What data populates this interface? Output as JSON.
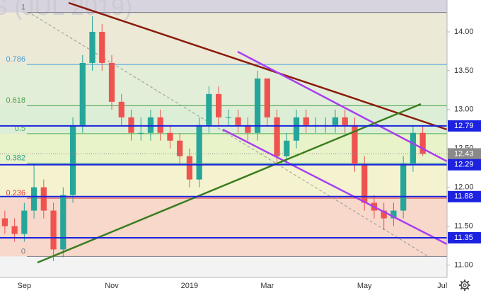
{
  "chart_data": {
    "type": "candlestick",
    "watermark": "S (JUL 2019)",
    "categories": [
      null,
      null,
      "Sep",
      null,
      null,
      null,
      null,
      null,
      null,
      null,
      null,
      "Nov",
      null,
      null,
      null,
      null,
      null,
      null,
      null,
      "2019",
      null,
      null,
      null,
      null,
      null,
      null,
      null,
      "Mar",
      null,
      null,
      null,
      null,
      null,
      null,
      null,
      null,
      null,
      "May",
      null,
      null,
      null,
      null,
      null,
      null,
      null,
      "Jul"
    ],
    "open": [
      11.6,
      11.5,
      11.4,
      11.7,
      12.0,
      11.7,
      11.2,
      11.9,
      12.8,
      13.6,
      14.0,
      13.6,
      13.1,
      12.9,
      12.7,
      12.7,
      12.9,
      12.7,
      12.6,
      12.4,
      12.1,
      12.8,
      13.2,
      12.9,
      12.9,
      12.8,
      12.7,
      13.4,
      12.9,
      12.4,
      12.6,
      12.9,
      12.8,
      12.8,
      12.8,
      12.9,
      12.8,
      12.3,
      11.8,
      11.7,
      11.6,
      11.7,
      12.3,
      12.7,
      null,
      null
    ],
    "high": [
      11.7,
      11.6,
      11.8,
      12.3,
      12.1,
      11.8,
      12.0,
      12.9,
      13.7,
      14.2,
      14.1,
      13.7,
      13.2,
      13.0,
      12.9,
      13.0,
      13.0,
      12.8,
      12.7,
      12.5,
      12.9,
      13.3,
      13.3,
      13.0,
      13.0,
      12.9,
      13.5,
      13.4,
      13.0,
      12.7,
      13.0,
      13.0,
      12.9,
      12.9,
      13.0,
      13.0,
      12.9,
      12.4,
      11.9,
      11.8,
      11.8,
      12.4,
      12.8,
      12.8,
      null,
      null
    ],
    "low": [
      11.4,
      11.3,
      11.3,
      11.6,
      11.6,
      11.05,
      11.1,
      11.8,
      12.7,
      13.5,
      13.5,
      13.0,
      12.8,
      12.6,
      12.6,
      12.6,
      12.6,
      12.5,
      12.3,
      12.0,
      12.0,
      12.7,
      12.8,
      12.8,
      12.7,
      12.6,
      12.6,
      12.8,
      12.3,
      12.3,
      12.5,
      12.7,
      12.7,
      12.7,
      12.7,
      12.7,
      12.2,
      11.7,
      11.6,
      11.45,
      11.5,
      11.6,
      12.2,
      12.4,
      null,
      null
    ],
    "close": [
      11.5,
      11.4,
      11.7,
      12.0,
      11.7,
      11.2,
      11.9,
      12.8,
      13.6,
      14.0,
      13.6,
      13.1,
      12.9,
      12.7,
      12.7,
      12.9,
      12.7,
      12.6,
      12.4,
      12.1,
      12.8,
      13.2,
      12.9,
      12.9,
      12.8,
      12.7,
      13.4,
      12.9,
      12.4,
      12.6,
      12.9,
      12.8,
      12.8,
      12.8,
      12.9,
      12.8,
      12.3,
      11.8,
      11.7,
      11.6,
      11.7,
      12.3,
      12.7,
      12.43,
      null,
      null
    ],
    "up_color": "#26a69a",
    "down_color": "#ef5350",
    "ylim": [
      10.84,
      14.41
    ],
    "yticks": [
      {
        "value": 11,
        "label": "11.00"
      },
      {
        "value": 11.5,
        "label": "11.50"
      },
      {
        "value": 12,
        "label": "12.00"
      },
      {
        "value": 12.5,
        "label": "12.50"
      },
      {
        "value": 13,
        "label": "13.00"
      },
      {
        "value": 13.5,
        "label": "13.50"
      },
      {
        "value": 14,
        "label": "14.00"
      }
    ],
    "fib_levels": [
      {
        "ratio": 1,
        "price": 14.25,
        "color": "#787b86",
        "band": "#ece9d6"
      },
      {
        "ratio": 0.786,
        "price": 13.58,
        "color": "#4a9fd8",
        "band": "#e2eed8"
      },
      {
        "ratio": 0.618,
        "price": 13.05,
        "color": "#43a047",
        "band": "#dcefd6"
      },
      {
        "ratio": 0.5,
        "price": 12.69,
        "color": "#4caf50",
        "band": "#e9f3c9"
      },
      {
        "ratio": 0.382,
        "price": 12.31,
        "color": "#2e9e8e",
        "band": "#f5f3cf"
      },
      {
        "ratio": 0.236,
        "price": 11.86,
        "color": "#e53935",
        "band": "#f7d8ca"
      },
      {
        "ratio": 0,
        "price": 11.11,
        "color": "#787b86",
        "band": "#f3f3f3"
      }
    ],
    "levels": [
      12.79,
      12.29,
      11.88,
      11.35
    ],
    "level_color": "#1c22e0",
    "last": 12.43,
    "last_color": "#8a8a8a"
  }
}
